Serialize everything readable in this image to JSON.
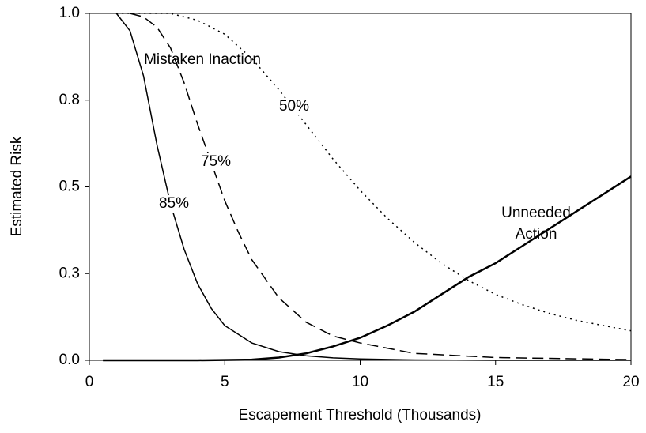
{
  "chart_data": {
    "type": "line",
    "xlabel": "Escapement Threshold (Thousands)",
    "ylabel": "Estimated Risk",
    "xlim": [
      0,
      20
    ],
    "xticks": [
      0,
      5,
      10,
      15,
      20
    ],
    "ylim": [
      0,
      1
    ],
    "yticks": [
      {
        "value": 0,
        "label": "0.0"
      },
      {
        "value": 0.25,
        "label": "0.3"
      },
      {
        "value": 0.5,
        "label": "0.5"
      },
      {
        "value": 0.75,
        "label": "0.8"
      },
      {
        "value": 1,
        "label": "1.0"
      }
    ],
    "series": [
      {
        "name": "85%",
        "color": "#000000",
        "dash": "solid",
        "width": 1.5,
        "x": [
          1,
          1.5,
          2,
          2.5,
          3,
          3.5,
          4,
          4.5,
          5,
          6,
          7,
          8,
          9,
          10,
          12,
          15,
          20
        ],
        "values": [
          1.0,
          0.95,
          0.82,
          0.62,
          0.45,
          0.32,
          0.22,
          0.15,
          0.1,
          0.05,
          0.025,
          0.013,
          0.007,
          0.004,
          0.001,
          0,
          0
        ]
      },
      {
        "name": "75%",
        "color": "#000000",
        "dash": "dashed",
        "width": 1.5,
        "x": [
          1.5,
          2,
          2.5,
          3,
          3.5,
          4,
          4.5,
          5,
          5.5,
          6,
          7,
          8,
          9,
          10,
          12,
          15,
          20
        ],
        "values": [
          1.0,
          0.99,
          0.96,
          0.9,
          0.8,
          0.68,
          0.57,
          0.46,
          0.37,
          0.29,
          0.18,
          0.11,
          0.07,
          0.05,
          0.02,
          0.008,
          0.002
        ]
      },
      {
        "name": "50%",
        "color": "#000000",
        "dash": "dotted",
        "width": 1.5,
        "x": [
          1,
          3,
          4,
          5,
          6,
          7,
          8,
          9,
          10,
          11,
          12,
          13,
          14,
          15,
          16,
          17,
          18,
          19,
          20
        ],
        "values": [
          1.0,
          1.0,
          0.98,
          0.94,
          0.87,
          0.78,
          0.68,
          0.58,
          0.49,
          0.41,
          0.34,
          0.28,
          0.23,
          0.19,
          0.16,
          0.135,
          0.115,
          0.1,
          0.085
        ]
      },
      {
        "color": "#000000",
        "dash": "solid",
        "width": 2.5,
        "x": [
          0.5,
          4,
          6,
          7,
          8,
          9,
          10,
          11,
          12,
          13,
          14,
          15,
          16,
          17,
          18,
          19,
          20
        ],
        "values": [
          0,
          0,
          0.002,
          0.008,
          0.02,
          0.04,
          0.065,
          0.1,
          0.14,
          0.19,
          0.24,
          0.28,
          0.33,
          0.38,
          0.43,
          0.48,
          0.53
        ]
      }
    ],
    "annotations": [
      "Mistaken Inaction",
      "Unneeded",
      "Action"
    ]
  }
}
